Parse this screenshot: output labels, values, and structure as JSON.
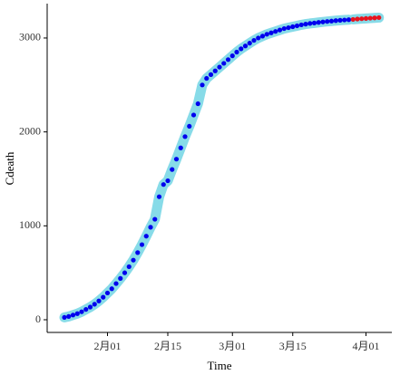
{
  "chart_data": {
    "type": "scatter",
    "x_label": "Time",
    "y_label": "Cdeath",
    "x": [
      "01-22",
      "01-23",
      "01-24",
      "01-25",
      "01-26",
      "01-27",
      "01-28",
      "01-29",
      "01-30",
      "01-31",
      "02-01",
      "02-02",
      "02-03",
      "02-04",
      "02-05",
      "02-06",
      "02-07",
      "02-08",
      "02-09",
      "02-10",
      "02-11",
      "02-12",
      "02-13",
      "02-14",
      "02-15",
      "02-16",
      "02-17",
      "02-18",
      "02-19",
      "02-20",
      "02-21",
      "02-22",
      "02-23",
      "02-24",
      "02-25",
      "02-26",
      "02-27",
      "02-28",
      "02-29",
      "03-01",
      "03-02",
      "03-03",
      "03-04",
      "03-05",
      "03-06",
      "03-07",
      "03-08",
      "03-09",
      "03-10",
      "03-11",
      "03-12",
      "03-13",
      "03-14",
      "03-15",
      "03-16",
      "03-17",
      "03-18",
      "03-19",
      "03-20",
      "03-21",
      "03-22",
      "03-23",
      "03-24",
      "03-25",
      "03-26",
      "03-27",
      "03-28",
      "03-29",
      "03-30",
      "03-31",
      "04-01",
      "04-02",
      "04-03",
      "04-04"
    ],
    "series": [
      {
        "color": "#0000ee",
        "band_color": "#87dbe8",
        "values": [
          25,
          35,
          50,
          65,
          85,
          110,
          135,
          165,
          200,
          240,
          285,
          330,
          385,
          440,
          500,
          565,
          635,
          715,
          800,
          890,
          985,
          1070,
          1310,
          1440,
          1480,
          1600,
          1710,
          1830,
          1950,
          2060,
          2180,
          2300,
          2500,
          2570,
          2610,
          2650,
          2690,
          2730,
          2770,
          2810,
          2850,
          2885,
          2915,
          2945,
          2975,
          3000,
          3020,
          3040,
          3055,
          3070,
          3085,
          3100,
          3110,
          3120,
          3130,
          3140,
          3148,
          3155,
          3160,
          3166,
          3171,
          3176,
          3180,
          3185,
          3189,
          3192,
          3195,
          null,
          null,
          null,
          null,
          null,
          null,
          null
        ]
      },
      {
        "color": "#e8141e",
        "band_color": "#87dbe8",
        "values": [
          null,
          null,
          null,
          null,
          null,
          null,
          null,
          null,
          null,
          null,
          null,
          null,
          null,
          null,
          null,
          null,
          null,
          null,
          null,
          null,
          null,
          null,
          null,
          null,
          null,
          null,
          null,
          null,
          null,
          null,
          null,
          null,
          null,
          null,
          null,
          null,
          null,
          null,
          null,
          null,
          null,
          null,
          null,
          null,
          null,
          null,
          null,
          null,
          null,
          null,
          null,
          null,
          null,
          null,
          null,
          null,
          null,
          null,
          null,
          null,
          null,
          null,
          null,
          null,
          null,
          null,
          null,
          3198,
          3202,
          3205,
          3208,
          3211,
          3214,
          3217
        ]
      }
    ],
    "xlim": [
      "01-18",
      "04-07"
    ],
    "xticks": [
      {
        "value": "02-01",
        "label": "2月01"
      },
      {
        "value": "02-15",
        "label": "2月15"
      },
      {
        "value": "03-01",
        "label": "3月01"
      },
      {
        "value": "03-15",
        "label": "3月15"
      },
      {
        "value": "04-01",
        "label": "4月01"
      }
    ],
    "ylim": [
      -135,
      3366
    ],
    "yticks": [
      0,
      1000,
      2000,
      3000
    ]
  }
}
